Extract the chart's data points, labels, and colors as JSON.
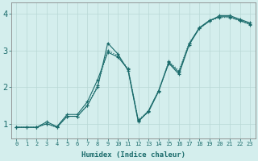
{
  "xlabel": "Humidex (Indice chaleur)",
  "xlim": [
    -0.5,
    23.5
  ],
  "ylim": [
    0.6,
    4.3
  ],
  "yticks": [
    1,
    2,
    3,
    4
  ],
  "xticks": [
    0,
    1,
    2,
    3,
    4,
    5,
    6,
    7,
    8,
    9,
    10,
    11,
    12,
    13,
    14,
    15,
    16,
    17,
    18,
    19,
    20,
    21,
    22,
    23
  ],
  "bg_color": "#d4eeed",
  "line_color": "#1a6b6b",
  "grid_color": "#b8d8d6",
  "line1_x": [
    0,
    1,
    2,
    3,
    4,
    5,
    6,
    7,
    8,
    9,
    10,
    11,
    12,
    13,
    14,
    15,
    16,
    17,
    18,
    19,
    20,
    21,
    22,
    23
  ],
  "line1_y": [
    0.9,
    0.9,
    0.9,
    1.0,
    0.9,
    1.2,
    1.2,
    1.5,
    2.0,
    3.2,
    2.9,
    2.45,
    1.05,
    1.35,
    1.9,
    2.65,
    2.35,
    3.15,
    3.6,
    3.8,
    3.95,
    3.95,
    3.85,
    3.75
  ],
  "line2_x": [
    0,
    2,
    3,
    4,
    5,
    6,
    7,
    8,
    9,
    10,
    11,
    12,
    13,
    14,
    15,
    16,
    17,
    18,
    19,
    20,
    21,
    22,
    23
  ],
  "line2_y": [
    0.9,
    0.9,
    1.0,
    0.9,
    1.2,
    1.2,
    1.5,
    2.05,
    3.0,
    2.85,
    2.5,
    1.1,
    1.35,
    1.9,
    2.7,
    2.45,
    3.2,
    3.6,
    3.8,
    3.9,
    3.9,
    3.8,
    3.7
  ],
  "line3_x": [
    0,
    1,
    2,
    3,
    4,
    5,
    6,
    7,
    8,
    9,
    10,
    11,
    12,
    13,
    14,
    15,
    16,
    17,
    18,
    19,
    20,
    21,
    22,
    23
  ],
  "line3_y": [
    0.9,
    0.9,
    0.9,
    1.05,
    0.92,
    1.25,
    1.25,
    1.6,
    2.2,
    2.95,
    2.82,
    2.48,
    1.08,
    1.32,
    1.88,
    2.68,
    2.4,
    3.18,
    3.62,
    3.82,
    3.92,
    3.92,
    3.82,
    3.72
  ]
}
